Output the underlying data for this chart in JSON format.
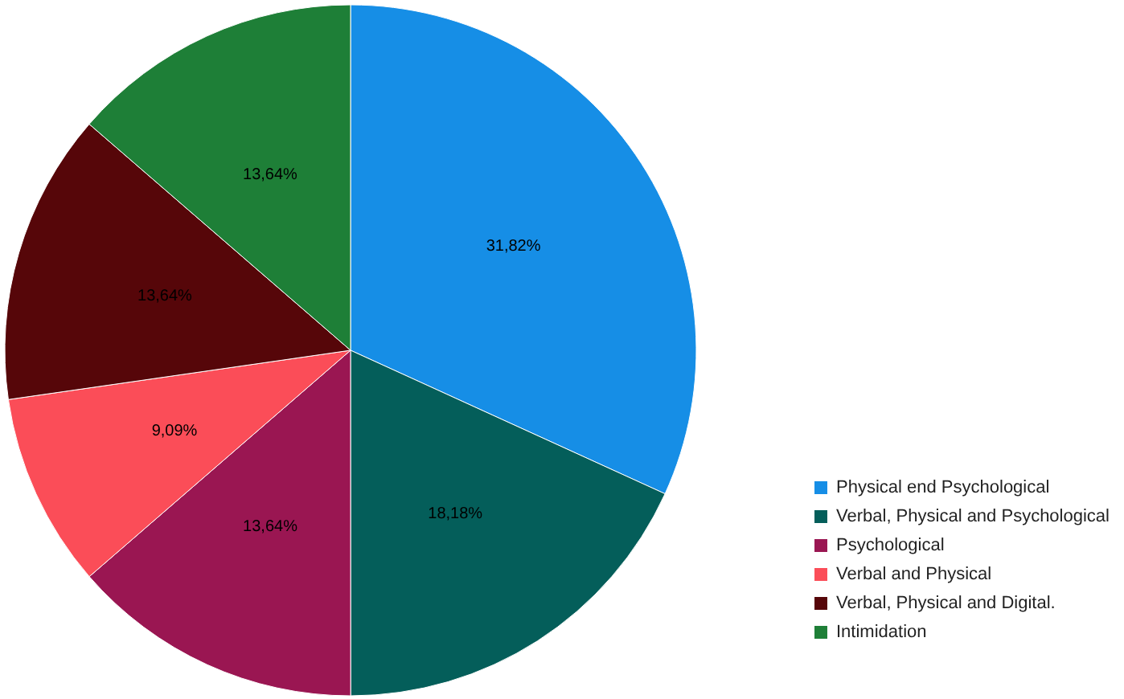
{
  "chart_data": {
    "type": "pie",
    "categories": [
      "Physical end Psychological",
      "Verbal, Physical and Psychological",
      "Psychological",
      "Verbal and Physical",
      "Verbal, Physical and Digital.",
      "Intimidation"
    ],
    "values": [
      31.82,
      18.18,
      13.64,
      9.09,
      13.64,
      13.64
    ],
    "value_labels": [
      "31,82%",
      "18,18%",
      "13,64%",
      "9,09%",
      "13,64%",
      "13,64%"
    ],
    "colors": [
      "#168ee6",
      "#045e5a",
      "#9a1652",
      "#fb4d58",
      "#560609",
      "#1e7f37"
    ],
    "legend": "bottom right"
  }
}
